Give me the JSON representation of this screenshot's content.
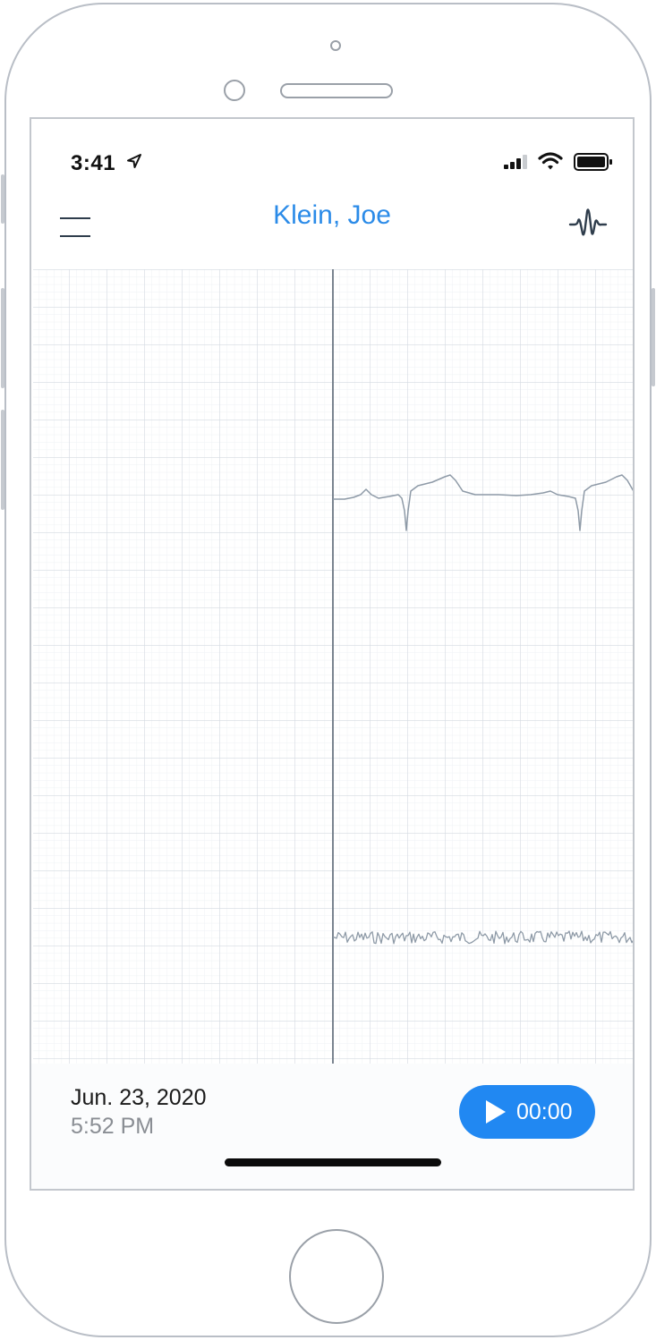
{
  "status_bar": {
    "time": "3:41",
    "icons": [
      "location-arrow-icon",
      "cellular-signal-icon",
      "wifi-icon",
      "battery-icon"
    ]
  },
  "header": {
    "title": "Klein, Joe",
    "menu_icon": "hamburger-menu-icon",
    "action_icon": "waveform-icon"
  },
  "recording": {
    "date": "Jun. 23, 2020",
    "time": "5:52 PM"
  },
  "player": {
    "elapsed": "00:00",
    "icon": "play-icon"
  },
  "colors": {
    "accent": "#2188f2",
    "title": "#2b8be8",
    "trace": "#8e9aa7",
    "grid_major": "#d4dae1",
    "grid_minor": "#eef1f4"
  }
}
